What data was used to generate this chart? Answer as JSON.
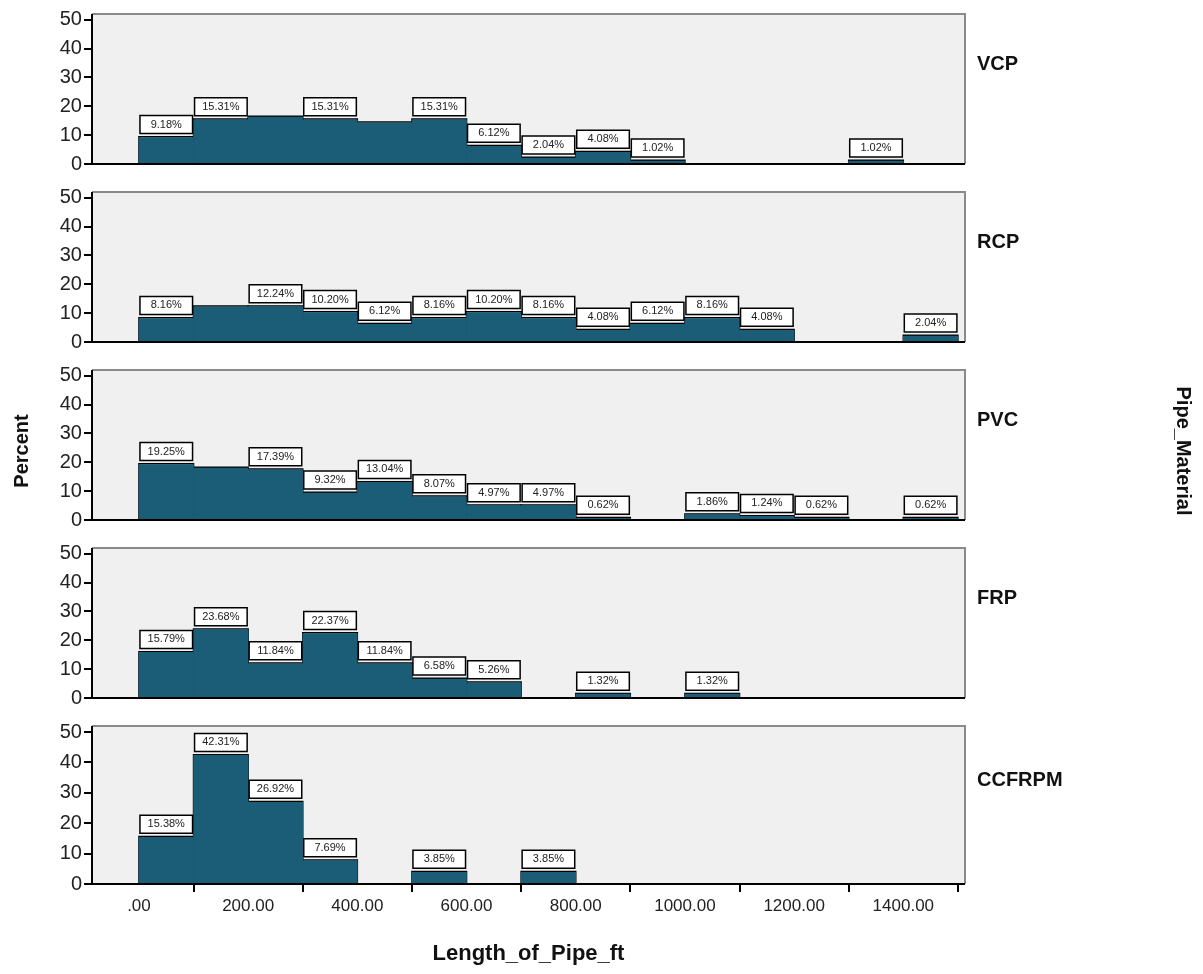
{
  "chart_data": [
    {
      "type": "histogram",
      "annotations": [
        "VCP"
      ],
      "bins": [
        0,
        100,
        200,
        300,
        400,
        500,
        600,
        700,
        800,
        900,
        1000,
        1100,
        1200,
        1300,
        1400,
        1500
      ],
      "values": [
        9.18,
        15.31,
        16.3,
        15.31,
        14.3,
        15.31,
        6.12,
        2.04,
        4.08,
        1.02,
        0,
        0,
        0,
        1.02,
        0
      ],
      "value_labels": [
        "9.18%",
        "15.31%",
        null,
        "15.31%",
        null,
        "15.31%",
        "6.12%",
        "2.04%",
        "4.08%",
        "1.02%",
        null,
        null,
        null,
        "1.02%",
        null
      ],
      "color": "#1b5c76",
      "xlim": [
        -86,
        1513
      ],
      "ylim": [
        0,
        52
      ],
      "yticks": [
        0,
        10,
        20,
        30,
        40,
        50
      ],
      "tick_labels": "y"
    },
    {
      "type": "histogram",
      "annotations": [
        "RCP"
      ],
      "bins": [
        0,
        100,
        200,
        300,
        400,
        500,
        600,
        700,
        800,
        900,
        1000,
        1100,
        1200,
        1300,
        1400,
        1500
      ],
      "values": [
        8.16,
        12.2,
        12.24,
        10.2,
        6.12,
        8.16,
        10.2,
        8.16,
        4.08,
        6.12,
        8.16,
        4.08,
        0,
        0,
        2.04
      ],
      "value_labels": [
        "8.16%",
        null,
        "12.24%",
        "10.20%",
        "6.12%",
        "8.16%",
        "10.20%",
        "8.16%",
        "4.08%",
        "6.12%",
        "8.16%",
        "4.08%",
        null,
        null,
        "2.04%"
      ],
      "color": "#1b5c76",
      "xlim": [
        -86,
        1513
      ],
      "ylim": [
        0,
        52
      ],
      "yticks": [
        0,
        10,
        20,
        30,
        40,
        50
      ],
      "tick_labels": "y"
    },
    {
      "type": "histogram",
      "annotations": [
        "PVC"
      ],
      "ylabel": "Percent",
      "y2label": "Pipe_Material",
      "bins": [
        0,
        100,
        200,
        300,
        400,
        500,
        600,
        700,
        800,
        900,
        1000,
        1100,
        1200,
        1300,
        1400,
        1500
      ],
      "values": [
        19.25,
        18.0,
        17.39,
        9.32,
        13.04,
        8.07,
        4.97,
        4.97,
        0.62,
        0,
        1.86,
        1.24,
        0.62,
        0,
        0.62
      ],
      "value_labels": [
        "19.25%",
        null,
        "17.39%",
        "9.32%",
        "13.04%",
        "8.07%",
        "4.97%",
        "4.97%",
        "0.62%",
        null,
        "1.86%",
        "1.24%",
        "0.62%",
        null,
        "0.62%"
      ],
      "color": "#1b5c76",
      "xlim": [
        -86,
        1513
      ],
      "ylim": [
        0,
        52
      ],
      "yticks": [
        0,
        10,
        20,
        30,
        40,
        50
      ],
      "tick_labels": "y"
    },
    {
      "type": "histogram",
      "annotations": [
        "FRP"
      ],
      "bins": [
        0,
        100,
        200,
        300,
        400,
        500,
        600,
        700,
        800,
        900,
        1000,
        1100,
        1200,
        1300,
        1400,
        1500
      ],
      "values": [
        15.79,
        23.68,
        11.84,
        22.37,
        11.84,
        6.58,
        5.26,
        0,
        1.32,
        0,
        1.32,
        0,
        0,
        0,
        0
      ],
      "value_labels": [
        "15.79%",
        "23.68%",
        "11.84%",
        "22.37%",
        "11.84%",
        "6.58%",
        "5.26%",
        null,
        "1.32%",
        null,
        "1.32%",
        null,
        null,
        null,
        null
      ],
      "color": "#1b5c76",
      "xlim": [
        -86,
        1513
      ],
      "ylim": [
        0,
        52
      ],
      "yticks": [
        0,
        10,
        20,
        30,
        40,
        50
      ],
      "tick_labels": "y"
    },
    {
      "type": "histogram",
      "annotations": [
        "CCFRPM"
      ],
      "xlabel": "Length_of_Pipe_ft",
      "bins": [
        0,
        100,
        200,
        300,
        400,
        500,
        600,
        700,
        800,
        900,
        1000,
        1100,
        1200,
        1300,
        1400,
        1500
      ],
      "values": [
        15.38,
        42.31,
        26.92,
        7.69,
        0,
        3.85,
        0,
        3.85,
        0,
        0,
        0,
        0,
        0,
        0,
        0
      ],
      "value_labels": [
        "15.38%",
        "42.31%",
        "26.92%",
        "7.69%",
        null,
        "3.85%",
        null,
        "3.85%",
        null,
        null,
        null,
        null,
        null,
        null,
        null
      ],
      "color": "#1b5c76",
      "xlim": [
        -86,
        1513
      ],
      "ylim": [
        0,
        52
      ],
      "yticks": [
        0,
        10,
        20,
        30,
        40,
        50
      ],
      "xticks": [
        {
          "value": 0,
          "label": ".00"
        },
        {
          "value": 200,
          "label": "200.00"
        },
        {
          "value": 400,
          "label": "400.00"
        },
        {
          "value": 600,
          "label": "600.00"
        },
        {
          "value": 800,
          "label": "800.00"
        },
        {
          "value": 1000,
          "label": "1000.00"
        },
        {
          "value": 1200,
          "label": "1200.00"
        },
        {
          "value": 1400,
          "label": "1400.00"
        }
      ]
    }
  ]
}
